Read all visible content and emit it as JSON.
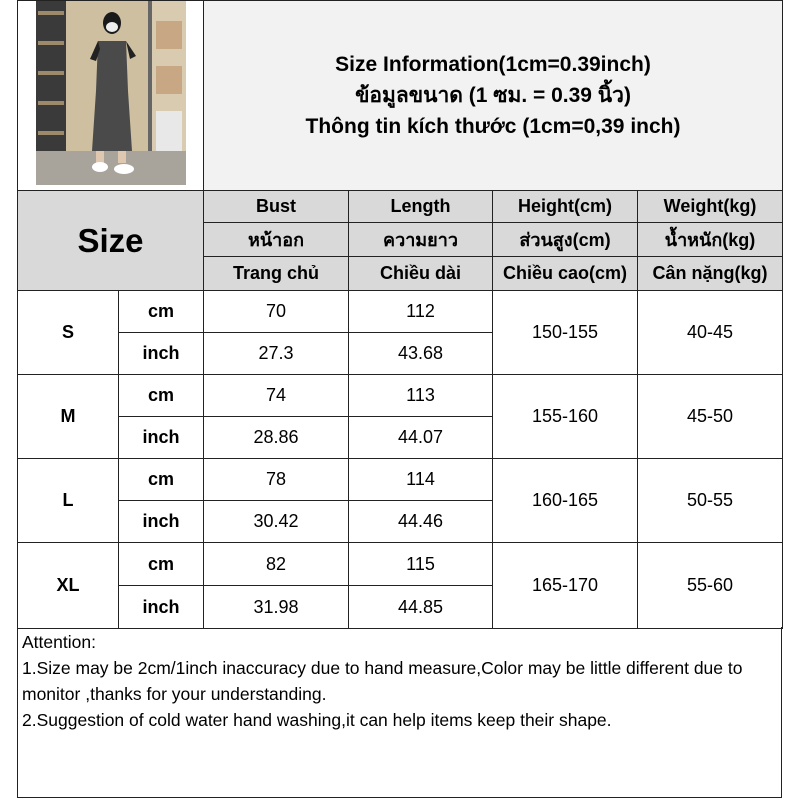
{
  "title": {
    "line1": "Size Information(1cm=0.39inch)",
    "line2": "ข้อมูลขนาด (1 ซม. = 0.39 นิ้ว)",
    "line3": "Thông tin kích thước (1cm=0,39 inch)"
  },
  "size_label": "Size",
  "headers": [
    [
      "Bust",
      "หน้าอก",
      "Trang chủ"
    ],
    [
      "Length",
      "ความยาว",
      "Chiều dài"
    ],
    [
      "Height(cm)",
      "ส่วนสูง(cm)",
      "Chiều cao(cm)"
    ],
    [
      "Weight(kg)",
      "น้ำหนัก(kg)",
      "Cân nặng(kg)"
    ]
  ],
  "units": {
    "cm": "cm",
    "inch": "inch"
  },
  "rows": [
    {
      "size": "S",
      "cm": [
        "70",
        "112"
      ],
      "inch": [
        "27.3",
        "43.68"
      ],
      "height": "150-155",
      "weight": "40-45"
    },
    {
      "size": "M",
      "cm": [
        "74",
        "113"
      ],
      "inch": [
        "28.86",
        "44.07"
      ],
      "height": "155-160",
      "weight": "45-50"
    },
    {
      "size": "L",
      "cm": [
        "78",
        "114"
      ],
      "inch": [
        "30.42",
        "44.46"
      ],
      "height": "160-165",
      "weight": "50-55"
    },
    {
      "size": "XL",
      "cm": [
        "82",
        "115"
      ],
      "inch": [
        "31.98",
        "44.85"
      ],
      "height": "165-170",
      "weight": "55-60"
    }
  ],
  "attention": {
    "heading": "Attention:",
    "note1": "1.Size may be 2cm/1inch inaccuracy due to hand measure,Color may be little different due to monitor ,thanks for your understanding.",
    "note2": "2.Suggestion of cold water hand washing,it can help items keep their shape."
  },
  "colors": {
    "header_bg": "#d9d9d9",
    "title_bg": "#f2f2f2",
    "border": "#222222"
  }
}
